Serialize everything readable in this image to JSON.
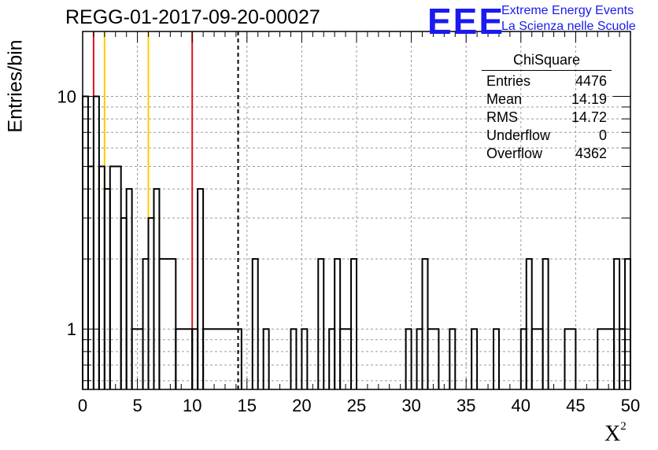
{
  "title": "REGG-01-2017-09-20-00027",
  "brand": {
    "logo": "EEE",
    "line1": "Extreme Energy Events",
    "line2": "La Scienza nelle Scuole"
  },
  "stats": {
    "name": "ChiSquare",
    "rows": [
      {
        "label": "Entries",
        "value": "4476"
      },
      {
        "label": "Mean",
        "value": "14.19"
      },
      {
        "label": "RMS",
        "value": "14.72"
      },
      {
        "label": "Underflow",
        "value": "0"
      },
      {
        "label": "Overflow",
        "value": "4362"
      }
    ]
  },
  "colors": {
    "red_lines": "#e0141c",
    "yellow_lines": "#ffcc00",
    "histogram": "#000000"
  },
  "chart_data": {
    "type": "bar",
    "title": "REGG-01-2017-09-20-00027",
    "xlabel": "X",
    "xlabel_sup": "2",
    "ylabel": "Entries/bin",
    "xlim": [
      0,
      50
    ],
    "ylim": [
      0.55,
      19
    ],
    "y_scale": "log",
    "grid": true,
    "bin_width": 0.5,
    "bins": [
      {
        "x0": 0,
        "x1": 0.5,
        "y": 10
      },
      {
        "x0": 0.5,
        "x1": 1,
        "y": 5
      },
      {
        "x0": 1,
        "x1": 1.5,
        "y": 10
      },
      {
        "x0": 1.5,
        "x1": 2,
        "y": 5
      },
      {
        "x0": 2,
        "x1": 2.5,
        "y": 4
      },
      {
        "x0": 2.5,
        "x1": 3.5,
        "y": 5
      },
      {
        "x0": 3.5,
        "x1": 4,
        "y": 3
      },
      {
        "x0": 4,
        "x1": 4.5,
        "y": 4
      },
      {
        "x0": 4.5,
        "x1": 5.5,
        "y": 1
      },
      {
        "x0": 5.5,
        "x1": 6,
        "y": 2
      },
      {
        "x0": 6,
        "x1": 6.5,
        "y": 3
      },
      {
        "x0": 6.5,
        "x1": 7,
        "y": 4
      },
      {
        "x0": 7,
        "x1": 8.5,
        "y": 2
      },
      {
        "x0": 8.5,
        "x1": 10,
        "y": 1
      },
      {
        "x0": 10,
        "x1": 10.5,
        "y": 1
      },
      {
        "x0": 10.5,
        "x1": 11,
        "y": 4
      },
      {
        "x0": 11,
        "x1": 14.5,
        "y": 1
      },
      {
        "x0": 15.5,
        "x1": 16,
        "y": 2
      },
      {
        "x0": 16.5,
        "x1": 17,
        "y": 1
      },
      {
        "x0": 19,
        "x1": 19.5,
        "y": 1
      },
      {
        "x0": 20,
        "x1": 20.5,
        "y": 1
      },
      {
        "x0": 21.5,
        "x1": 22,
        "y": 2
      },
      {
        "x0": 22.5,
        "x1": 23,
        "y": 1
      },
      {
        "x0": 23,
        "x1": 23.5,
        "y": 2
      },
      {
        "x0": 23.5,
        "x1": 24.5,
        "y": 1
      },
      {
        "x0": 24.5,
        "x1": 25,
        "y": 2
      },
      {
        "x0": 29.5,
        "x1": 30,
        "y": 1
      },
      {
        "x0": 30.5,
        "x1": 31,
        "y": 1
      },
      {
        "x0": 31,
        "x1": 31.5,
        "y": 2
      },
      {
        "x0": 31.5,
        "x1": 32.5,
        "y": 1
      },
      {
        "x0": 33.5,
        "x1": 34,
        "y": 1
      },
      {
        "x0": 35.5,
        "x1": 36,
        "y": 1
      },
      {
        "x0": 37.5,
        "x1": 38,
        "y": 1
      },
      {
        "x0": 40,
        "x1": 40.5,
        "y": 1
      },
      {
        "x0": 40.5,
        "x1": 41,
        "y": 2
      },
      {
        "x0": 41,
        "x1": 42,
        "y": 1
      },
      {
        "x0": 42,
        "x1": 42.5,
        "y": 2
      },
      {
        "x0": 44,
        "x1": 45,
        "y": 1
      },
      {
        "x0": 47,
        "x1": 48.5,
        "y": 1
      },
      {
        "x0": 48.5,
        "x1": 49,
        "y": 2
      },
      {
        "x0": 49,
        "x1": 49.5,
        "y": 1
      },
      {
        "x0": 49.5,
        "x1": 50,
        "y": 2
      }
    ],
    "x_ticks": [
      0,
      5,
      10,
      15,
      20,
      25,
      30,
      35,
      40,
      45,
      50
    ],
    "y_tick_labels": [
      1,
      10
    ],
    "vertical_lines": [
      {
        "x": 1,
        "color": "#e0141c",
        "style": "solid"
      },
      {
        "x": 2,
        "color": "#ffcc00",
        "style": "solid"
      },
      {
        "x": 6,
        "color": "#ffcc00",
        "style": "solid"
      },
      {
        "x": 10,
        "color": "#e0141c",
        "style": "solid"
      },
      {
        "x": 14.19,
        "color": "#000000",
        "style": "dashed"
      }
    ]
  }
}
